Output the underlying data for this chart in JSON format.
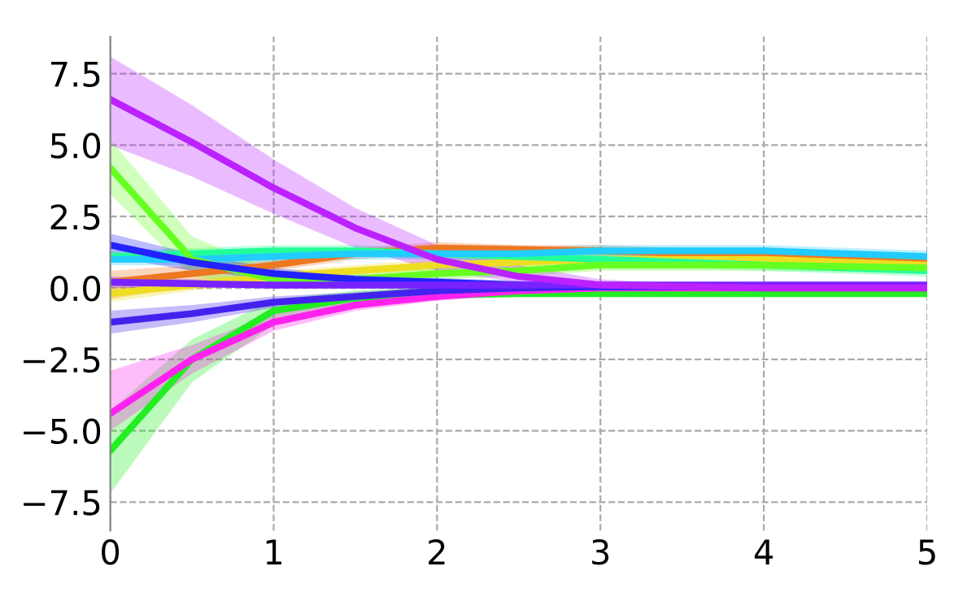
{
  "chart_data": {
    "type": "line",
    "x": [
      0,
      0.5,
      1,
      1.5,
      2,
      2.5,
      3,
      3.5,
      4,
      4.5,
      5
    ],
    "xlim": [
      0,
      5
    ],
    "ylim": [
      -8.5,
      8.8
    ],
    "xticks": [
      0,
      1,
      2,
      3,
      4,
      5
    ],
    "yticks": [
      -7.5,
      {
        "value": -5,
        "label": "−5.0"
      },
      -2.5,
      {
        "value": 0,
        "label": "0.0"
      },
      2.5,
      {
        "value": 5,
        "label": "5.0"
      },
      7.5
    ],
    "grid": true,
    "line_style": "solid",
    "marker": "none",
    "series": [
      {
        "color": "#ee7722",
        "values": [
          0.2,
          0.5,
          0.8,
          1.2,
          1.4,
          1.35,
          1.3,
          1.2,
          1.1,
          1.0,
          0.9
        ],
        "lower": [
          -0.4,
          0.1,
          0.6,
          1.0,
          1.2,
          1.2,
          1.1,
          1.0,
          0.9,
          0.8,
          0.7
        ],
        "upper": [
          0.6,
          0.8,
          1.0,
          1.4,
          1.6,
          1.5,
          1.5,
          1.4,
          1.3,
          1.2,
          1.1
        ]
      },
      {
        "color": "#eedd22",
        "values": [
          -0.2,
          0.1,
          0.4,
          0.6,
          0.8,
          0.9,
          1.0,
          1.0,
          1.0,
          0.9,
          0.8
        ],
        "lower": [
          -0.5,
          -0.1,
          0.2,
          0.4,
          0.6,
          0.7,
          0.8,
          0.8,
          0.8,
          0.7,
          0.6
        ],
        "upper": [
          0.1,
          0.3,
          0.6,
          0.8,
          1.0,
          1.1,
          1.2,
          1.2,
          1.2,
          1.1,
          1.0
        ]
      },
      {
        "color": "#22ff99",
        "values": [
          1.1,
          1.2,
          1.3,
          1.3,
          1.2,
          1.1,
          1.0,
          0.9,
          0.8,
          0.7,
          0.6
        ],
        "lower": [
          0.9,
          1.0,
          1.1,
          1.1,
          1.0,
          0.9,
          0.8,
          0.7,
          0.6,
          0.5,
          0.4
        ],
        "upper": [
          1.3,
          1.4,
          1.5,
          1.5,
          1.4,
          1.3,
          1.2,
          1.1,
          1.0,
          0.9,
          0.8
        ]
      },
      {
        "color": "#22ccff",
        "values": [
          1.0,
          1.0,
          1.1,
          1.2,
          1.2,
          1.2,
          1.3,
          1.3,
          1.3,
          1.2,
          1.1
        ],
        "lower": [
          0.8,
          0.8,
          0.9,
          1.0,
          1.0,
          1.0,
          1.1,
          1.1,
          1.1,
          1.0,
          0.9
        ],
        "upper": [
          1.2,
          1.2,
          1.3,
          1.4,
          1.4,
          1.4,
          1.5,
          1.5,
          1.5,
          1.4,
          1.3
        ]
      },
      {
        "color": "#66ff22",
        "values": [
          4.2,
          1.0,
          0.3,
          0.3,
          0.5,
          0.6,
          0.8,
          0.8,
          0.8,
          0.75,
          0.7
        ],
        "lower": [
          3.3,
          0.4,
          0.0,
          0.1,
          0.3,
          0.4,
          0.6,
          0.6,
          0.6,
          0.55,
          0.5
        ],
        "upper": [
          5.2,
          1.8,
          0.6,
          0.5,
          0.7,
          0.8,
          1.0,
          1.0,
          1.0,
          0.95,
          0.9
        ]
      },
      {
        "color": "#22ee22",
        "values": [
          -5.7,
          -2.5,
          -0.8,
          -0.35,
          -0.25,
          -0.2,
          -0.2,
          -0.2,
          -0.2,
          -0.2,
          -0.2
        ],
        "lower": [
          -7.2,
          -3.3,
          -1.3,
          -0.6,
          -0.35,
          -0.3,
          -0.3,
          -0.3,
          -0.3,
          -0.3,
          -0.3
        ],
        "upper": [
          -4.3,
          -1.8,
          -0.4,
          -0.1,
          0.05,
          0.1,
          0.1,
          0.1,
          0.1,
          0.1,
          0.1
        ]
      },
      {
        "color": "#ff22ee",
        "values": [
          -4.4,
          -2.5,
          -1.2,
          -0.6,
          -0.3,
          -0.1,
          0.0,
          0.0,
          0.0,
          0.0,
          0.0
        ],
        "lower": [
          -5.0,
          -3.0,
          -1.5,
          -0.8,
          -0.45,
          -0.25,
          -0.15,
          -0.15,
          -0.15,
          -0.15,
          -0.15
        ],
        "upper": [
          -2.9,
          -2.0,
          -0.9,
          -0.4,
          -0.15,
          0.05,
          0.15,
          0.15,
          0.15,
          0.15,
          0.15
        ]
      },
      {
        "color": "#4422ee",
        "values": [
          -1.2,
          -0.9,
          -0.5,
          -0.3,
          -0.1,
          0.0,
          0.05,
          0.05,
          0.05,
          0.05,
          0.05
        ],
        "lower": [
          -1.6,
          -1.2,
          -0.7,
          -0.45,
          -0.25,
          -0.15,
          -0.1,
          -0.1,
          -0.1,
          -0.1,
          -0.1
        ],
        "upper": [
          -0.8,
          -0.6,
          -0.3,
          -0.15,
          0.05,
          0.15,
          0.2,
          0.2,
          0.2,
          0.2,
          0.2
        ]
      },
      {
        "color": "#2222ff",
        "values": [
          1.5,
          0.9,
          0.5,
          0.3,
          0.2,
          0.1,
          0.05,
          0.05,
          null,
          null,
          null
        ],
        "lower": [
          1.1,
          0.6,
          0.3,
          0.15,
          0.05,
          0.0,
          -0.05,
          -0.05,
          -0.05,
          -0.05,
          -0.05
        ],
        "upper": [
          1.9,
          1.2,
          0.7,
          0.45,
          0.35,
          0.25,
          0.15,
          0.15,
          0.15,
          0.15,
          0.15
        ]
      },
      {
        "color": "#7722ff",
        "values": [
          0.2,
          0.15,
          0.1,
          0.1,
          0.1,
          0.1,
          0.1,
          0.1,
          0.1,
          0.1,
          0.1
        ],
        "lower": [
          0.0,
          0.0,
          0.0,
          0.0,
          0.0,
          0.0,
          0.0,
          0.0,
          0.0,
          0.0,
          0.0
        ],
        "upper": [
          0.4,
          0.3,
          0.2,
          0.2,
          0.2,
          0.2,
          0.2,
          0.2,
          0.2,
          0.2,
          0.2
        ]
      },
      {
        "color": "#bb22ff",
        "values": [
          6.6,
          5.1,
          3.5,
          2.1,
          1.0,
          0.4,
          0.1,
          0.05,
          0.0,
          0.0,
          0.0
        ],
        "lower": [
          5.0,
          3.9,
          2.6,
          1.4,
          0.6,
          0.2,
          0.0,
          -0.05,
          -0.1,
          -0.1,
          -0.1
        ],
        "upper": [
          8.1,
          6.4,
          4.5,
          2.8,
          1.5,
          0.8,
          0.3,
          0.15,
          0.1,
          0.1,
          0.1
        ]
      }
    ]
  }
}
